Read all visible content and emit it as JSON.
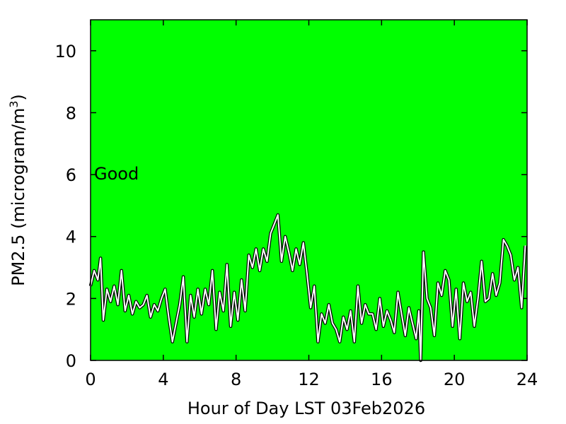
{
  "chart_data": {
    "type": "line",
    "title": "",
    "xlabel": "Hour of Day LST 03Feb2026",
    "ylabel_main": "PM2.5 (microgram/m",
    "ylabel_sup": "3",
    "ylabel_close": ")",
    "xlim": [
      0,
      24
    ],
    "ylim": [
      0,
      11
    ],
    "xticks": [
      0,
      4,
      8,
      12,
      16,
      20,
      24
    ],
    "yticks": [
      0,
      2,
      4,
      6,
      8,
      10
    ],
    "grid": false,
    "legend": false,
    "background_band": {
      "label": "Good",
      "label_y": 6,
      "color": "#00ff00"
    },
    "line_color": "#ffffff",
    "series": [
      {
        "x": [
          0,
          0.2,
          0.4,
          0.55,
          0.7,
          0.9,
          1.1,
          1.3,
          1.5,
          1.7,
          1.9,
          2.1,
          2.3,
          2.5,
          2.7,
          2.9,
          3.1,
          3.3,
          3.5,
          3.7,
          3.9,
          4.1,
          4.3,
          4.5,
          4.7,
          4.9,
          5.1,
          5.3,
          5.5,
          5.7,
          5.9,
          6.1,
          6.3,
          6.5,
          6.7,
          6.9,
          7.1,
          7.3,
          7.5,
          7.7,
          7.9,
          8.1,
          8.3,
          8.5,
          8.7,
          8.9,
          9.1,
          9.3,
          9.5,
          9.7,
          9.9,
          10.1,
          10.3,
          10.5,
          10.7,
          10.9,
          11.1,
          11.3,
          11.5,
          11.7,
          11.9,
          12.1,
          12.3,
          12.5,
          12.7,
          12.9,
          13.1,
          13.3,
          13.5,
          13.7,
          13.9,
          14.1,
          14.3,
          14.5,
          14.7,
          14.9,
          15.1,
          15.3,
          15.5,
          15.7,
          15.9,
          16.1,
          16.3,
          16.5,
          16.7,
          16.9,
          17.1,
          17.3,
          17.5,
          17.7,
          17.9,
          18.05,
          18.15,
          18.3,
          18.5,
          18.7,
          18.9,
          19.1,
          19.3,
          19.5,
          19.7,
          19.9,
          20.1,
          20.3,
          20.5,
          20.7,
          20.9,
          21.1,
          21.3,
          21.5,
          21.7,
          21.9,
          22.1,
          22.3,
          22.5,
          22.7,
          22.9,
          23.1,
          23.3,
          23.5,
          23.7,
          23.9
        ],
        "values": [
          2.4,
          2.9,
          2.6,
          3.3,
          1.3,
          2.3,
          1.9,
          2.4,
          1.8,
          2.9,
          1.6,
          2.1,
          1.5,
          1.9,
          1.7,
          1.8,
          2.1,
          1.4,
          1.8,
          1.6,
          2.0,
          2.3,
          1.4,
          0.6,
          1.2,
          1.8,
          2.7,
          0.6,
          2.1,
          1.4,
          2.3,
          1.5,
          2.3,
          1.8,
          2.9,
          1.0,
          2.2,
          1.6,
          3.1,
          1.1,
          2.2,
          1.3,
          2.6,
          1.6,
          3.4,
          3.0,
          3.6,
          2.9,
          3.6,
          3.2,
          4.1,
          4.4,
          4.7,
          3.2,
          4.0,
          3.5,
          2.9,
          3.6,
          3.1,
          3.8,
          2.8,
          1.7,
          2.4,
          0.6,
          1.5,
          1.2,
          1.8,
          1.2,
          1.0,
          0.6,
          1.4,
          1.0,
          1.6,
          0.6,
          2.4,
          1.2,
          1.8,
          1.5,
          1.5,
          1.0,
          2.0,
          1.1,
          1.6,
          1.3,
          0.9,
          2.2,
          1.5,
          0.8,
          1.7,
          1.2,
          0.7,
          1.6,
          0.0,
          3.5,
          2.0,
          1.7,
          0.8,
          2.5,
          2.1,
          2.9,
          2.6,
          1.1,
          2.3,
          0.7,
          2.5,
          1.9,
          2.2,
          1.1,
          2.0,
          3.2,
          1.9,
          2.0,
          2.8,
          2.1,
          2.5,
          3.9,
          3.7,
          3.4,
          2.6,
          3.0,
          1.7,
          3.7
        ]
      }
    ]
  }
}
